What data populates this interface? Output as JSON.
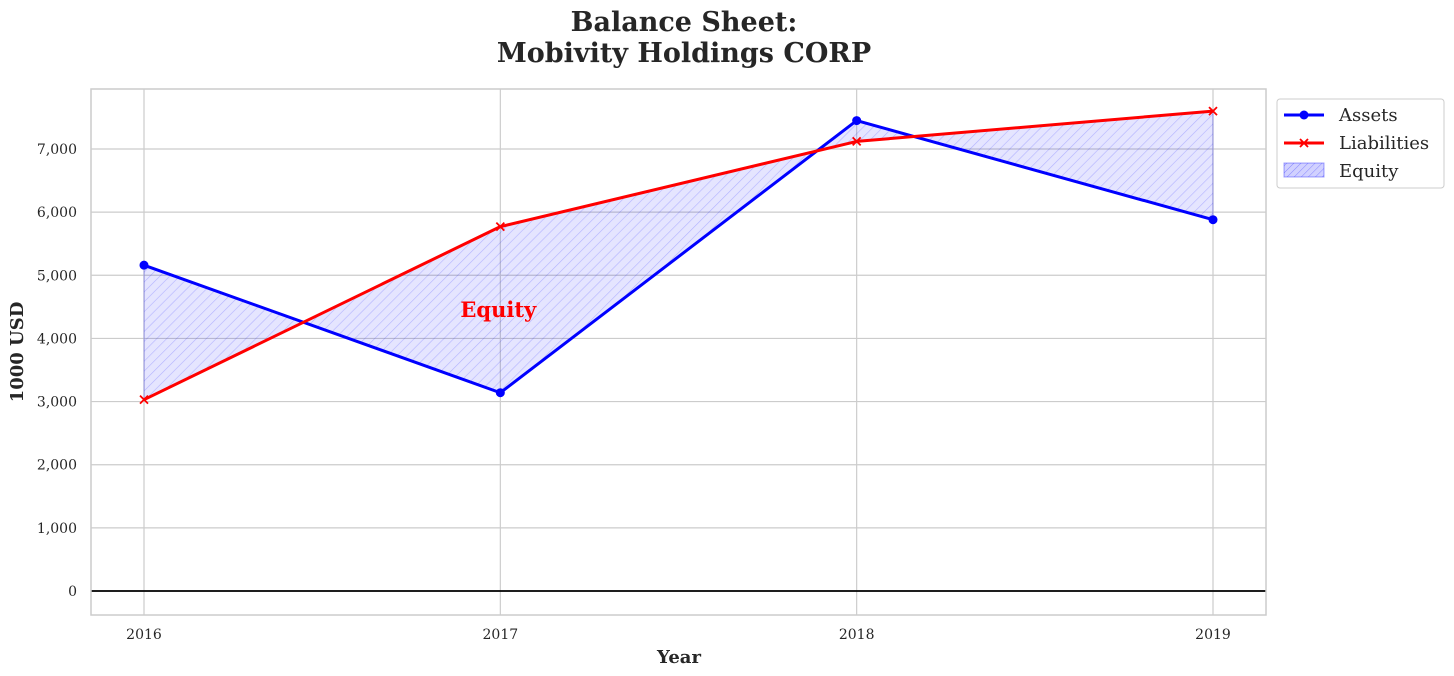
{
  "chart_data": {
    "type": "line",
    "title_line1": "Balance Sheet:",
    "title_line2": "Mobivity Holdings CORP",
    "xlabel": "Year",
    "ylabel": "1000 USD",
    "categories": [
      "2016",
      "2017",
      "2018",
      "2019"
    ],
    "series": [
      {
        "name": "Assets",
        "values": [
          5160,
          3140,
          7450,
          5880
        ],
        "color": "#0000ff",
        "marker": "circle"
      },
      {
        "name": "Liabilities",
        "values": [
          3030,
          5770,
          7120,
          7600
        ],
        "color": "#ff0000",
        "marker": "x"
      }
    ],
    "fill": {
      "name": "Equity",
      "color": "#0000ff",
      "pattern": "diagonal-hatch"
    },
    "ylim": [
      -380,
      7950
    ],
    "yticks": [
      0,
      1000,
      2000,
      3000,
      4000,
      5000,
      6000,
      7000
    ],
    "ytick_labels": [
      "0",
      "1,000",
      "2,000",
      "3,000",
      "4,000",
      "5,000",
      "6,000",
      "7,000"
    ],
    "annotation": {
      "text": "Equity",
      "x": "2017",
      "y": 4450,
      "color": "#ff0000"
    },
    "grid": true,
    "legend_position": "outside-top-right",
    "zero_line": true
  }
}
